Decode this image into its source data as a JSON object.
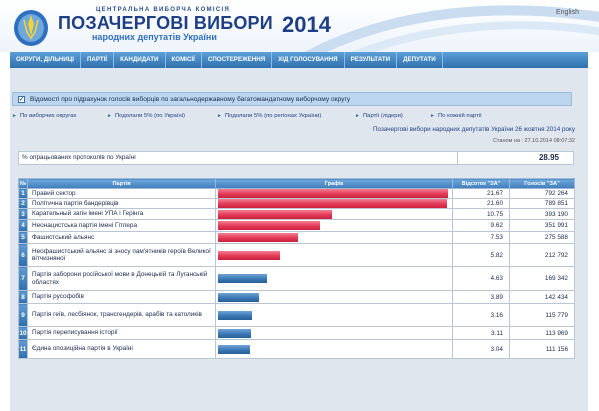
{
  "header": {
    "commission": "ЦЕНТРАЛЬНА ВИБОРЧА КОМІСІЯ",
    "title": "ПОЗАЧЕРГОВІ ВИБОРИ",
    "subtitle": "народних депутатів України",
    "year": "2014",
    "language_link": "English"
  },
  "nav": [
    "ОКРУГИ, ДІЛЬНИЦІ",
    "ПАРТІЇ",
    "КАНДИДАТИ",
    "КОМІСІЇ",
    "СПОСТЕРЕЖЕННЯ",
    "ХІД ГОЛОСУВАННЯ",
    "РЕЗУЛЬТАТИ",
    "ДЕПУТАТИ"
  ],
  "info_bar": {
    "text": "Відомості про підрахунок голосів виборців по загальнодержавному багатомандатному виборчому округу"
  },
  "subtabs": [
    "По виборчих округах",
    "Подолали 5% (по Україні)",
    "Подолали 5% (по регіонах України)",
    "Партії (лідери)",
    "По кожній партії"
  ],
  "election_title": "Позачергові вибори народних депутатів України 26 жовтня 2014 року",
  "status_time": "Станом на : 27.10.2014 08:07:32",
  "processed": {
    "label": "% опрацьованих протоколів по Україні",
    "value": "28.95"
  },
  "table": {
    "headers": [
      "№",
      "Партія",
      "Графік",
      "Відсоток \"ЗА\"",
      "Голосів \"ЗА\""
    ],
    "rows": [
      {
        "num": "1",
        "party": "Правий сектор",
        "pct": "21.67",
        "votes": "792 264",
        "share": 21.67,
        "color": "red"
      },
      {
        "num": "2",
        "party": "Політична партія бандерівців",
        "pct": "21.60",
        "votes": "789 851",
        "share": 21.6,
        "color": "red"
      },
      {
        "num": "3",
        "party": "Карательный загін імені УПА і Герінга",
        "pct": "10.75",
        "votes": "393 190",
        "share": 10.75,
        "color": "red"
      },
      {
        "num": "4",
        "party": "Неонацистська партія імені Гітлера",
        "pct": "9.62",
        "votes": "351 991",
        "share": 9.62,
        "color": "red"
      },
      {
        "num": "5",
        "party": "Фашистський альянс",
        "pct": "7.53",
        "votes": "275 588",
        "share": 7.53,
        "color": "red"
      },
      {
        "num": "6",
        "party": "Неофашистський альянс зі зносу пам'ятників героїв Великої вітчизняної",
        "pct": "5.82",
        "votes": "212 792",
        "share": 5.82,
        "color": "red"
      },
      {
        "num": "7",
        "party": "Партія заборони російської мови в Донецькій та Луганській областях",
        "pct": "4.63",
        "votes": "169 342",
        "share": 4.63,
        "color": "blue"
      },
      {
        "num": "8",
        "party": "Партія русофобів",
        "pct": "3.89",
        "votes": "142 434",
        "share": 3.89,
        "color": "blue"
      },
      {
        "num": "9",
        "party": "Партія геїв, лесбіянок, трансгендерів, арабів та католиків",
        "pct": "3.16",
        "votes": "115 779",
        "share": 3.16,
        "color": "blue"
      },
      {
        "num": "10",
        "party": "Партія переписування історії",
        "pct": "3.11",
        "votes": "113 969",
        "share": 3.11,
        "color": "blue"
      },
      {
        "num": "11",
        "party": "Єдина опозиційна партія в Україні",
        "pct": "3.04",
        "votes": "111 156",
        "share": 3.04,
        "color": "blue"
      }
    ]
  },
  "chart_data": {
    "type": "bar",
    "categories": [
      "Правий сектор",
      "Політична партія бандерівців",
      "Карательный загін імені УПА і Герінга",
      "Неонацистська партія імені Гітлера",
      "Фашистський альянс",
      "Неофашистський альянс зі зносу пам'ятників героїв Великої вітчизняної",
      "Партія заборони російської мови в Донецькій та Луганській областях",
      "Партія русофобів",
      "Партія геїв, лесбіянок, трансгендерів, арабів та католиків",
      "Партія переписування історії",
      "Єдина опозиційна партія в Україні"
    ],
    "values": [
      21.67,
      21.6,
      10.75,
      9.62,
      7.53,
      5.82,
      4.63,
      3.89,
      3.16,
      3.11,
      3.04
    ],
    "orientation": "horizontal",
    "title": "",
    "xlabel": "",
    "ylabel": "",
    "colors": {
      "above_threshold": "#e23a57",
      "below_threshold": "#3a78b4"
    }
  }
}
